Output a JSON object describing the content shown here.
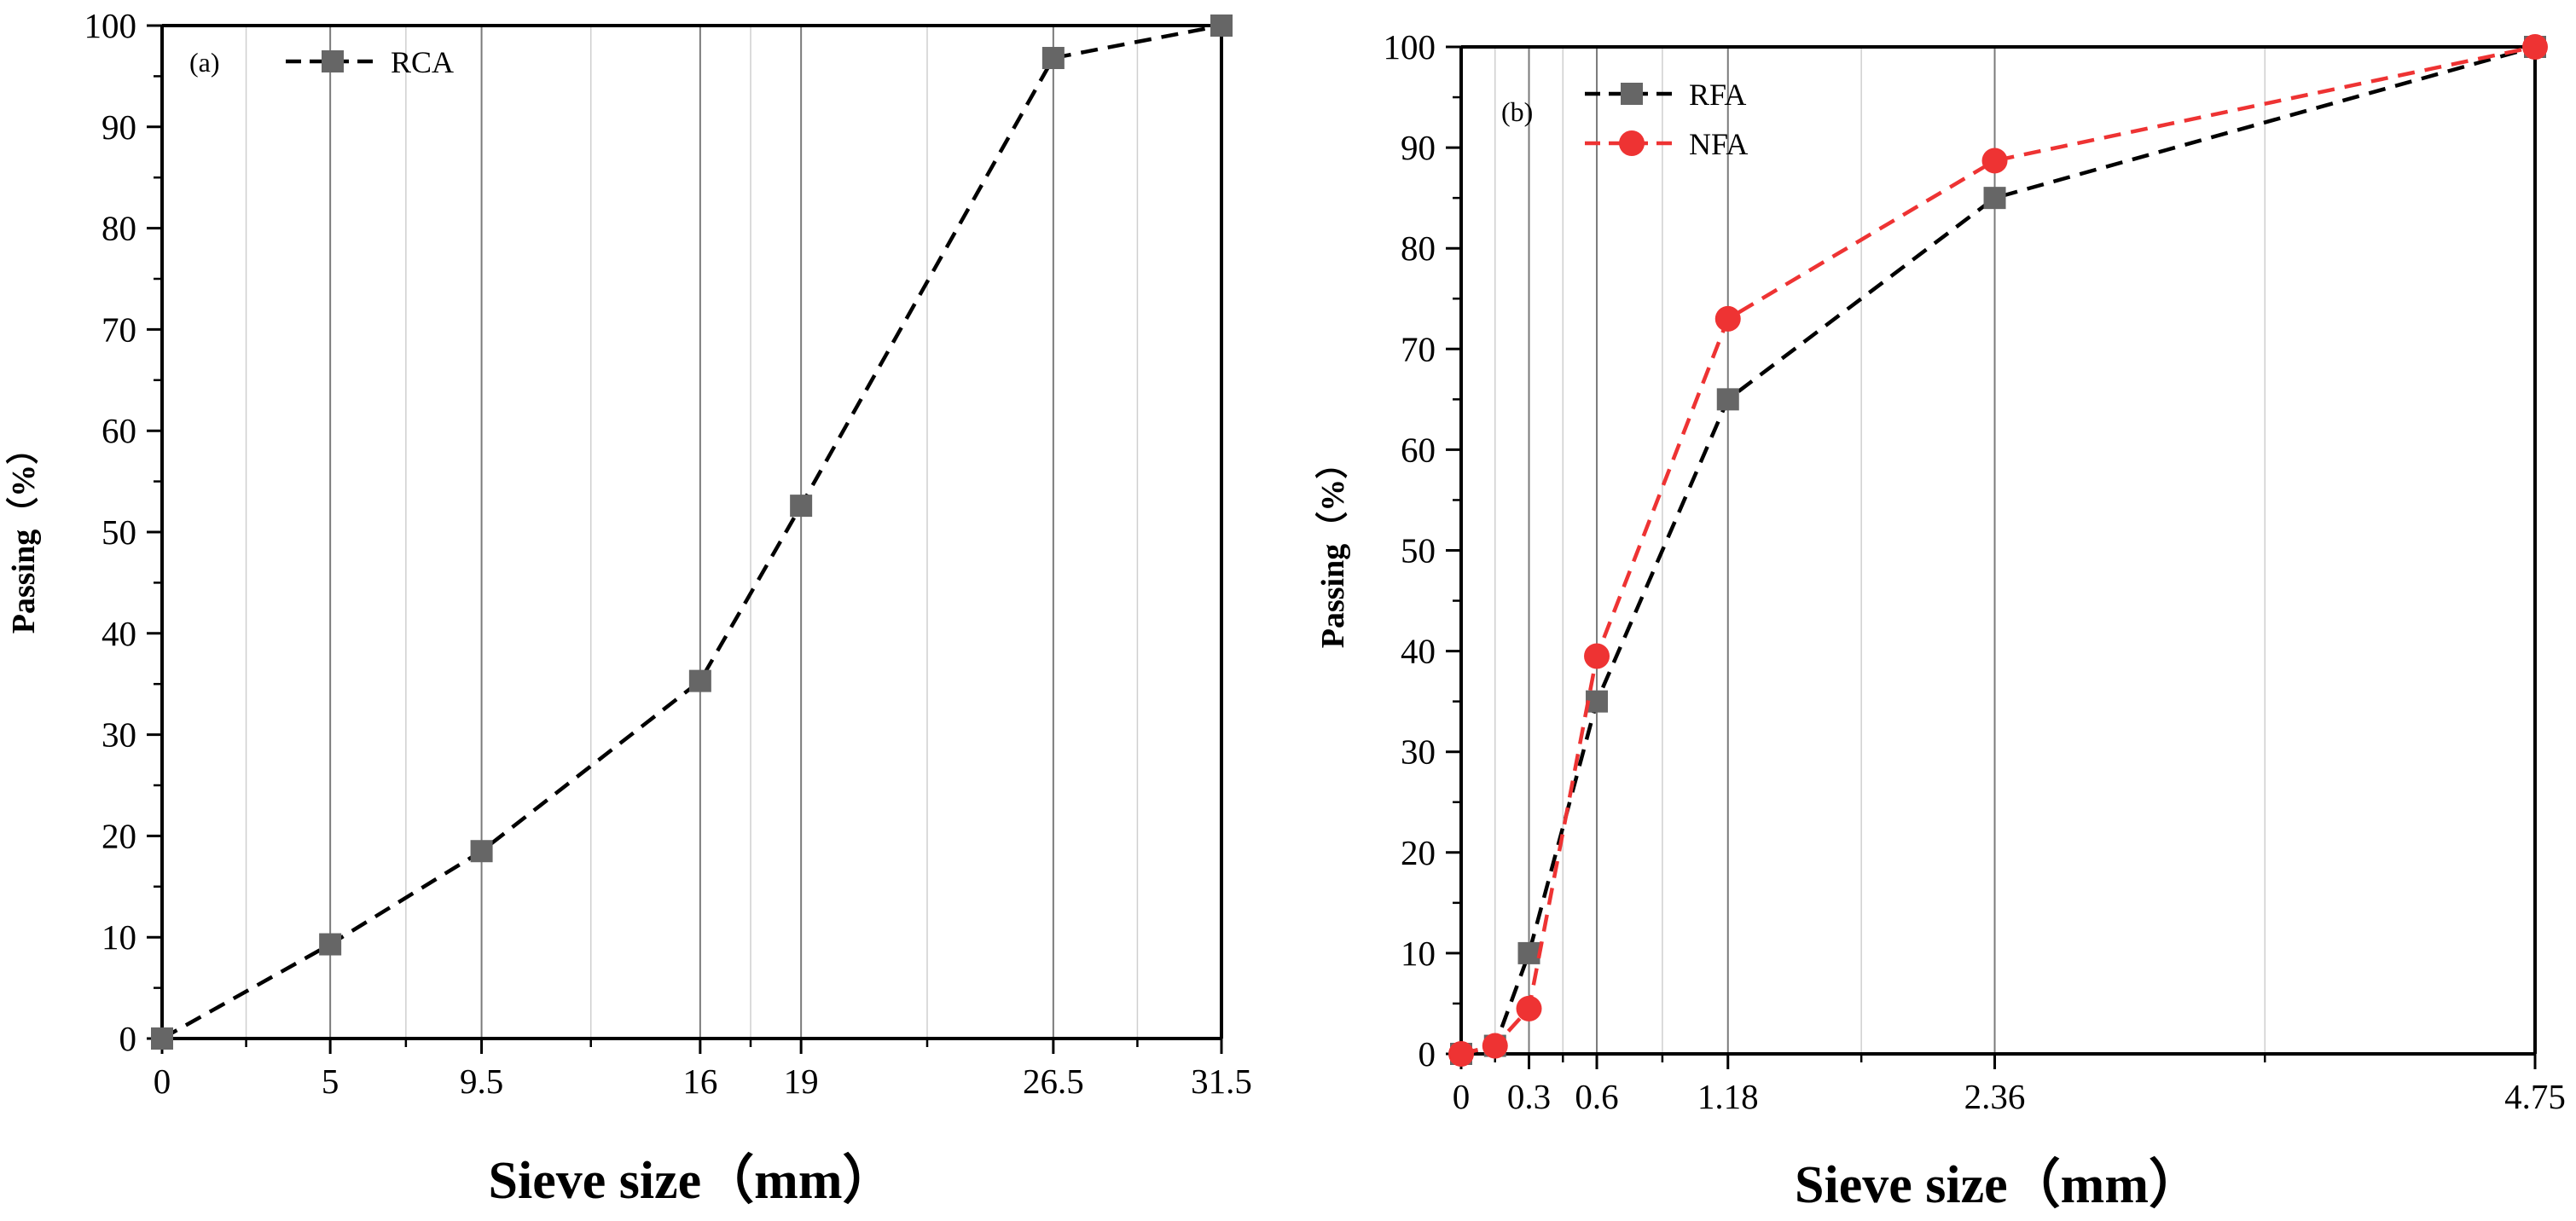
{
  "chart_data": [
    {
      "type": "line",
      "panel_label": "(a)",
      "xlabel": "Sieve size（mm）",
      "ylabel": "Passing（%）",
      "xlim": [
        0,
        31.5
      ],
      "ylim": [
        0,
        100
      ],
      "x_ticks": [
        0,
        5,
        9.5,
        16,
        19,
        26.5,
        31.5
      ],
      "x_tick_labels": [
        "0",
        "5",
        "9.5",
        "16",
        "19",
        "26.5",
        "31.5"
      ],
      "y_ticks": [
        0,
        10,
        20,
        30,
        40,
        50,
        60,
        70,
        80,
        90,
        100
      ],
      "y_tick_labels": [
        "0",
        "10",
        "20",
        "30",
        "40",
        "50",
        "60",
        "70",
        "80",
        "90",
        "100"
      ],
      "vertical_gridlines": true,
      "legend_position": "top-left",
      "series": [
        {
          "name": "RCA",
          "color": "#666666",
          "marker": "square",
          "line_style": "dashed",
          "line_color": "#000000",
          "x": [
            0,
            5,
            9.5,
            16,
            19,
            26.5,
            31.5
          ],
          "y": [
            0,
            9.3,
            18.5,
            35.3,
            52.6,
            96.8,
            100
          ]
        }
      ]
    },
    {
      "type": "line",
      "panel_label": "(b)",
      "xlabel": "Sieve size（mm）",
      "ylabel": "Passing（%）",
      "xlim": [
        0,
        4.75
      ],
      "ylim": [
        0,
        100
      ],
      "x_ticks": [
        0,
        0.3,
        0.6,
        1.18,
        2.36,
        4.75
      ],
      "x_tick_labels": [
        "0",
        "0.3",
        "0.6",
        "1.18",
        "2.36",
        "4.75"
      ],
      "y_ticks": [
        0,
        10,
        20,
        30,
        40,
        50,
        60,
        70,
        80,
        90,
        100
      ],
      "y_tick_labels": [
        "0",
        "10",
        "20",
        "30",
        "40",
        "50",
        "60",
        "70",
        "80",
        "90",
        "100"
      ],
      "vertical_gridlines": true,
      "legend_position": "top-left",
      "series": [
        {
          "name": "RFA",
          "color": "#666666",
          "marker": "square",
          "line_style": "dashed",
          "line_color": "#000000",
          "x": [
            0,
            0.15,
            0.3,
            0.6,
            1.18,
            2.36,
            4.75
          ],
          "y": [
            0,
            0.8,
            10,
            35,
            65,
            85,
            100
          ]
        },
        {
          "name": "NFA",
          "color": "#ee3333",
          "marker": "circle",
          "line_style": "dashed",
          "line_color": "#ee3333",
          "x": [
            0,
            0.15,
            0.3,
            0.6,
            1.18,
            2.36,
            4.75
          ],
          "y": [
            0,
            0.8,
            4.5,
            39.5,
            73,
            88.7,
            100
          ]
        }
      ]
    }
  ]
}
